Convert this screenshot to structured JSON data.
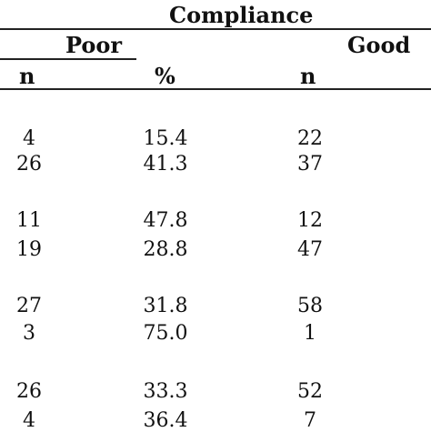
{
  "table": {
    "group_header": "Compliance",
    "subheaders": [
      "Poor",
      "Good"
    ],
    "columns": [
      "n",
      "%",
      "n"
    ],
    "row_groups": [
      [
        [
          "4",
          "15.4",
          "22"
        ],
        [
          "26",
          "41.3",
          "37"
        ]
      ],
      [
        [
          "11",
          "47.8",
          "12"
        ],
        [
          "19",
          "28.8",
          "47"
        ]
      ],
      [
        [
          "27",
          "31.8",
          "58"
        ],
        [
          "3",
          "75.0",
          "1"
        ]
      ],
      [
        [
          "26",
          "33.3",
          "52"
        ],
        [
          "4",
          "36.4",
          "7"
        ]
      ]
    ]
  }
}
